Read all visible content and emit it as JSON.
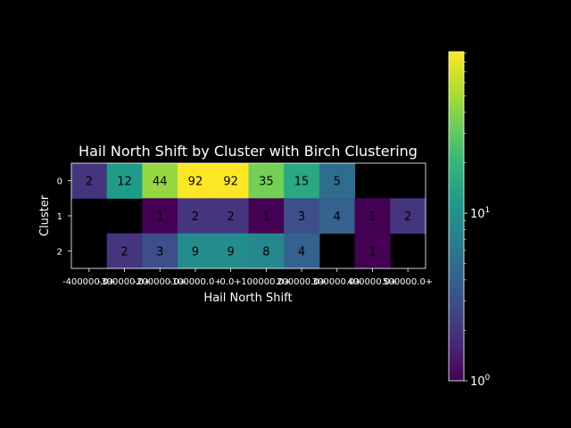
{
  "chart_data": {
    "type": "heatmap",
    "title": "Hail North Shift by Cluster with Birch Clustering",
    "xlabel": "Hail North Shift",
    "ylabel": "Cluster",
    "x_tick_labels": [
      "-400000.0+",
      "-300000.0+",
      "-200000.0+",
      "-100000.0+",
      "0.0+",
      "100000.0+",
      "200000.0+",
      "300000.0+",
      "400000.0+",
      "500000.0+"
    ],
    "y_tick_labels": [
      "0",
      "1",
      "2"
    ],
    "values": [
      [
        2,
        12,
        44,
        92,
        92,
        35,
        15,
        5,
        null,
        null
      ],
      [
        null,
        null,
        1,
        2,
        2,
        1,
        3,
        4,
        1,
        2
      ],
      [
        null,
        2,
        3,
        9,
        9,
        8,
        4,
        null,
        1,
        null
      ]
    ],
    "colorbar": {
      "scale": "log",
      "colormap": "viridis",
      "range": [
        1,
        92
      ],
      "tick_labels": [
        "10^0",
        "10^1"
      ],
      "tick_values": [
        1,
        10
      ]
    }
  }
}
